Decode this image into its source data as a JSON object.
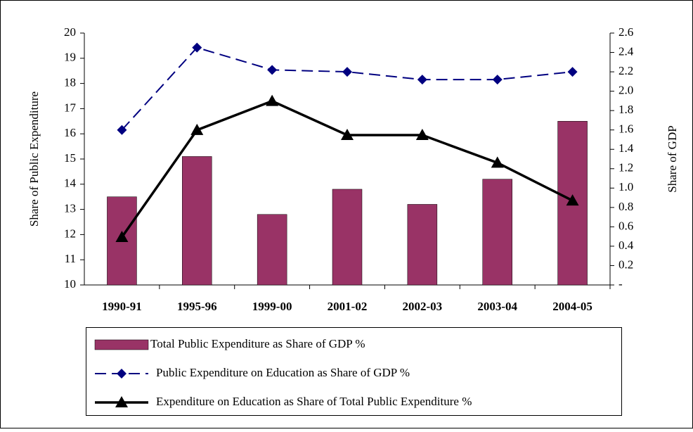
{
  "chart_data": {
    "type": "bar-line",
    "y_label": "Share of Public Expenditure",
    "y2_label": "Share of GDP",
    "categories": [
      "1990-91",
      "1995-96",
      "1999-00",
      "2001-02",
      "2002-03",
      "2003-04",
      "2004-05"
    ],
    "series": [
      {
        "name": "Total Public Expenditure as Share of GDP %",
        "type": "bar",
        "color": "#993366",
        "axis": "y",
        "values": [
          13.5,
          15.1,
          12.8,
          13.8,
          13.2,
          14.2,
          16.5
        ]
      },
      {
        "name": "Public Expenditure on Education as Share of GDP %",
        "type": "line",
        "marker": "diamond",
        "dashed": true,
        "color": "#000080",
        "axis": "y2",
        "values": [
          1.6,
          2.45,
          2.22,
          2.2,
          2.12,
          2.12,
          2.2
        ]
      },
      {
        "name": "Expenditure on Education as Share of Total Public Expenditure %",
        "type": "line",
        "marker": "triangle",
        "dashed": false,
        "color": "#000000",
        "axis": "y",
        "values": [
          11.9,
          16.15,
          17.3,
          15.95,
          15.95,
          14.85,
          13.35
        ]
      }
    ],
    "ylim": [
      10,
      20
    ],
    "yticks": [
      10,
      11,
      12,
      13,
      14,
      15,
      16,
      17,
      18,
      19,
      20
    ],
    "y2lim": [
      0,
      2.6
    ],
    "y2ticks": [
      {
        "value": 0,
        "label": "-"
      },
      0.2,
      0.4,
      0.6,
      0.8,
      {
        "value": 1,
        "label": "1.0"
      },
      1.2,
      1.4,
      1.6,
      1.8,
      {
        "value": 2,
        "label": "2.0"
      },
      2.2,
      2.4,
      2.6
    ],
    "grid": false
  }
}
